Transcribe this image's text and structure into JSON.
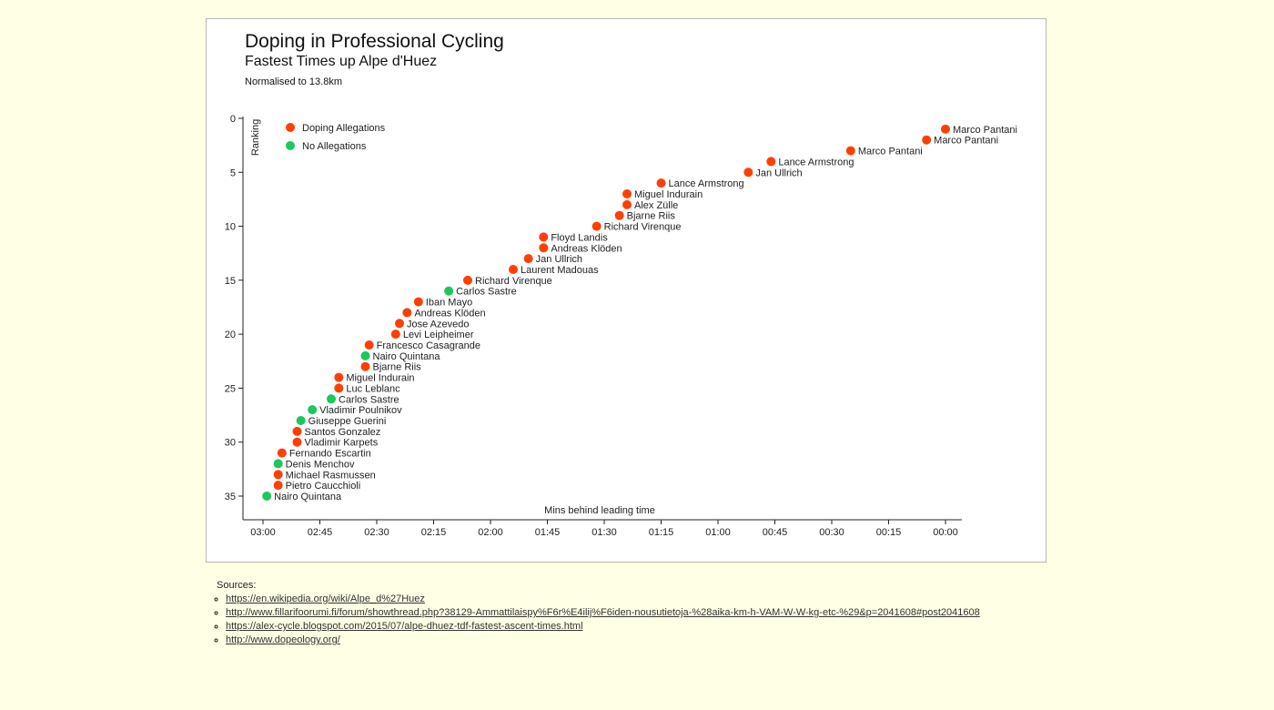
{
  "chart_data": {
    "type": "scatter",
    "title": "Doping in Professional Cycling",
    "subtitle": "Fastest Times up Alpe d'Huez",
    "note": "Normalised to 13.8km",
    "xlabel": "Mins behind leading time",
    "ylabel": "Ranking",
    "x_unit": "seconds behind leading time",
    "xlim": [
      183,
      0
    ],
    "ylim": [
      0,
      37
    ],
    "x_ticks": [
      "03:00",
      "02:45",
      "02:30",
      "02:15",
      "02:00",
      "01:45",
      "01:30",
      "01:15",
      "01:00",
      "00:45",
      "00:30",
      "00:15",
      "00:00"
    ],
    "y_ticks": [
      0,
      5,
      10,
      15,
      20,
      25,
      30,
      35
    ],
    "legend": [
      {
        "label": "Doping Allegations",
        "color": "#ff3f00"
      },
      {
        "label": "No Allegations",
        "color": "#19c95a"
      }
    ],
    "legend_position": "top-left",
    "colors": {
      "doping": "#ff3f00",
      "clean": "#19c95a"
    },
    "points": [
      {
        "rank": 1,
        "behind": 0,
        "name": "Marco Pantani",
        "doping": true
      },
      {
        "rank": 2,
        "behind": 5,
        "name": "Marco Pantani",
        "doping": true
      },
      {
        "rank": 3,
        "behind": 25,
        "name": "Marco Pantani",
        "doping": true
      },
      {
        "rank": 4,
        "behind": 46,
        "name": "Lance Armstrong",
        "doping": true
      },
      {
        "rank": 5,
        "behind": 52,
        "name": "Jan Ullrich",
        "doping": true
      },
      {
        "rank": 6,
        "behind": 75,
        "name": "Lance Armstrong",
        "doping": true
      },
      {
        "rank": 7,
        "behind": 84,
        "name": "Miguel Indurain",
        "doping": true
      },
      {
        "rank": 8,
        "behind": 84,
        "name": "Alex Zülle",
        "doping": true
      },
      {
        "rank": 9,
        "behind": 86,
        "name": "Bjarne Riis",
        "doping": true
      },
      {
        "rank": 10,
        "behind": 92,
        "name": "Richard Virenque",
        "doping": true
      },
      {
        "rank": 11,
        "behind": 106,
        "name": "Floyd Landis",
        "doping": true
      },
      {
        "rank": 12,
        "behind": 106,
        "name": "Andreas Klöden",
        "doping": true
      },
      {
        "rank": 13,
        "behind": 110,
        "name": "Jan Ullrich",
        "doping": true
      },
      {
        "rank": 14,
        "behind": 114,
        "name": "Laurent Madouas",
        "doping": true
      },
      {
        "rank": 15,
        "behind": 126,
        "name": "Richard Virenque",
        "doping": true
      },
      {
        "rank": 16,
        "behind": 131,
        "name": "Carlos Sastre",
        "doping": false
      },
      {
        "rank": 17,
        "behind": 139,
        "name": "Iban Mayo",
        "doping": true
      },
      {
        "rank": 18,
        "behind": 142,
        "name": "Andreas Klöden",
        "doping": true
      },
      {
        "rank": 19,
        "behind": 144,
        "name": "Jose Azevedo",
        "doping": true
      },
      {
        "rank": 20,
        "behind": 145,
        "name": "Levi Leipheimer",
        "doping": true
      },
      {
        "rank": 21,
        "behind": 152,
        "name": "Francesco Casagrande",
        "doping": true
      },
      {
        "rank": 22,
        "behind": 153,
        "name": "Nairo Quintana",
        "doping": false
      },
      {
        "rank": 23,
        "behind": 153,
        "name": "Bjarne Riis",
        "doping": true
      },
      {
        "rank": 24,
        "behind": 160,
        "name": "Miguel Indurain",
        "doping": true
      },
      {
        "rank": 25,
        "behind": 160,
        "name": "Luc Leblanc",
        "doping": true
      },
      {
        "rank": 26,
        "behind": 162,
        "name": "Carlos Sastre",
        "doping": false
      },
      {
        "rank": 27,
        "behind": 167,
        "name": "Vladimir Poulnikov",
        "doping": false
      },
      {
        "rank": 28,
        "behind": 170,
        "name": "Giuseppe Guerini",
        "doping": false
      },
      {
        "rank": 29,
        "behind": 171,
        "name": "Santos Gonzalez",
        "doping": true
      },
      {
        "rank": 30,
        "behind": 171,
        "name": "Vladimir Karpets",
        "doping": true
      },
      {
        "rank": 31,
        "behind": 175,
        "name": "Fernando Escartin",
        "doping": true
      },
      {
        "rank": 32,
        "behind": 176,
        "name": "Denis Menchov",
        "doping": false
      },
      {
        "rank": 33,
        "behind": 176,
        "name": "Michael Rasmussen",
        "doping": true
      },
      {
        "rank": 34,
        "behind": 176,
        "name": "Pietro Caucchioli",
        "doping": true
      },
      {
        "rank": 35,
        "behind": 179,
        "name": "Nairo Quintana",
        "doping": false
      }
    ]
  },
  "sources": {
    "heading": "Sources:",
    "links": [
      "https://en.wikipedia.org/wiki/Alpe_d%27Huez",
      "http://www.fillarifoorumi.fi/forum/showthread.php?38129-Ammattilaispy%F6r%E4ilij%F6iden-nousutietoja-%28aika-km-h-VAM-W-W-kg-etc-%29&p=2041608#post2041608",
      "https://alex-cycle.blogspot.com/2015/07/alpe-dhuez-tdf-fastest-ascent-times.html",
      "http://www.dopeology.org/"
    ]
  }
}
